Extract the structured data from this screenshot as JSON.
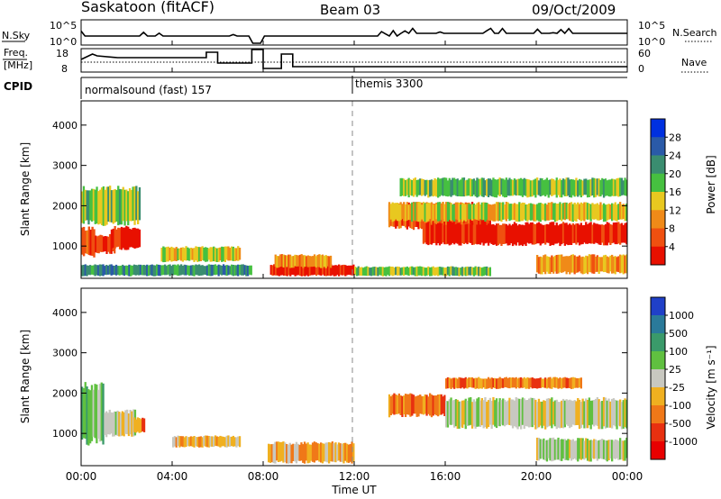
{
  "header": {
    "station": "Saskatoon (fitACF)",
    "beam": "Beam 03",
    "date": "09/Oct/2009"
  },
  "noise_panel": {
    "left_label": "N.Sky",
    "right_label": "N.Search",
    "left_ticks": [
      "10^5",
      "10^0"
    ],
    "right_ticks": [
      "10^5",
      "10^0"
    ]
  },
  "freq_panel": {
    "left_label_1": "Freq.",
    "left_label_2": "[MHz]",
    "right_label": "Nave",
    "left_ticks": [
      "18",
      "8"
    ],
    "right_ticks": [
      "60",
      "0"
    ]
  },
  "cpid_panel": {
    "label": "CPID",
    "modes": [
      {
        "name": "normalsound (fast) 157",
        "start_hour": 0
      },
      {
        "name": "themis 3300",
        "start_hour": 12
      }
    ]
  },
  "x_axis": {
    "label": "Time UT",
    "ticks": [
      "00:00",
      "04:00",
      "08:00",
      "12:00",
      "16:00",
      "20:00",
      "00:00"
    ],
    "range_hours": [
      0,
      24
    ]
  },
  "power_panel": {
    "ylabel": "Slant Range [km]",
    "yticks": [
      "1000",
      "2000",
      "3000",
      "4000"
    ],
    "colorbar_label": "Power [dB]",
    "colorbar_ticks": [
      "4",
      "8",
      "12",
      "16",
      "20",
      "24",
      "28"
    ],
    "colors": [
      "#0030e0",
      "#2a5aa8",
      "#3a8d70",
      "#46c040",
      "#e8c820",
      "#f08a18",
      "#f05010",
      "#e81000"
    ]
  },
  "velocity_panel": {
    "ylabel": "Slant Range [km]",
    "yticks": [
      "1000",
      "2000",
      "3000",
      "4000"
    ],
    "colorbar_label": "Velocity [m s⁻¹]",
    "colorbar_ticks": [
      "1000",
      "500",
      "100",
      "25",
      "-25",
      "-100",
      "-500",
      "-1000"
    ],
    "colors": [
      "#2040c8",
      "#2a7a9a",
      "#3a9a6a",
      "#60c040",
      "#c8c8c0",
      "#f0b020",
      "#f07818",
      "#e83010",
      "#e80000"
    ]
  },
  "chart_data": {
    "type": "heatmap",
    "x_unit": "hours UT",
    "y_unit": "km",
    "xlim": [
      0,
      24
    ],
    "ylim": [
      200,
      4600
    ],
    "gap_hours": [
      7.5,
      8.0
    ],
    "power_regions": [
      {
        "t0": 0.0,
        "t1": 0.6,
        "r0": 700,
        "r1": 1500,
        "level": 6
      },
      {
        "t0": 0.6,
        "t1": 1.5,
        "r0": 800,
        "r1": 1300,
        "level": 7
      },
      {
        "t0": 1.3,
        "t1": 2.6,
        "r0": 900,
        "r1": 1500,
        "level": 7
      },
      {
        "t0": 0.0,
        "t1": 2.6,
        "r0": 1500,
        "r1": 2500,
        "level": 3
      },
      {
        "t0": 0.0,
        "t1": 7.5,
        "r0": 250,
        "r1": 550,
        "level": 2
      },
      {
        "t0": 3.5,
        "t1": 7.0,
        "r0": 600,
        "r1": 1000,
        "level": 4
      },
      {
        "t0": 8.3,
        "t1": 12.0,
        "r0": 250,
        "r1": 550,
        "level": 7
      },
      {
        "t0": 8.5,
        "t1": 11.0,
        "r0": 450,
        "r1": 800,
        "level": 5
      },
      {
        "t0": 12.0,
        "t1": 18.0,
        "r0": 250,
        "r1": 500,
        "level": 3
      },
      {
        "t0": 13.5,
        "t1": 18.0,
        "r0": 1400,
        "r1": 2100,
        "level": 6
      },
      {
        "t0": 15.0,
        "t1": 24.0,
        "r0": 1000,
        "r1": 1600,
        "level": 7
      },
      {
        "t0": 13.5,
        "t1": 24.0,
        "r0": 1600,
        "r1": 2100,
        "level": 4
      },
      {
        "t0": 14.0,
        "t1": 24.0,
        "r0": 2200,
        "r1": 2700,
        "level": 3
      },
      {
        "t0": 20.0,
        "t1": 24.0,
        "r0": 300,
        "r1": 800,
        "level": 5
      }
    ],
    "velocity_regions": [
      {
        "t0": 0.0,
        "t1": 1.0,
        "r0": 700,
        "r1": 2300,
        "level": 3
      },
      {
        "t0": 1.0,
        "t1": 2.4,
        "r0": 900,
        "r1": 1600,
        "level": 4
      },
      {
        "t0": 2.3,
        "t1": 2.8,
        "r0": 1000,
        "r1": 1400,
        "level": 6
      },
      {
        "t0": 4.0,
        "t1": 7.0,
        "r0": 650,
        "r1": 950,
        "level": 5
      },
      {
        "t0": 8.2,
        "t1": 12.0,
        "r0": 250,
        "r1": 800,
        "level": 5
      },
      {
        "t0": 13.5,
        "t1": 16.0,
        "r0": 1400,
        "r1": 2000,
        "level": 6
      },
      {
        "t0": 16.0,
        "t1": 22.0,
        "r0": 2100,
        "r1": 2400,
        "level": 6
      },
      {
        "t0": 16.0,
        "t1": 24.0,
        "r0": 1100,
        "r1": 1900,
        "level": 4
      },
      {
        "t0": 20.0,
        "t1": 24.0,
        "r0": 300,
        "r1": 900,
        "level": 4
      }
    ]
  }
}
